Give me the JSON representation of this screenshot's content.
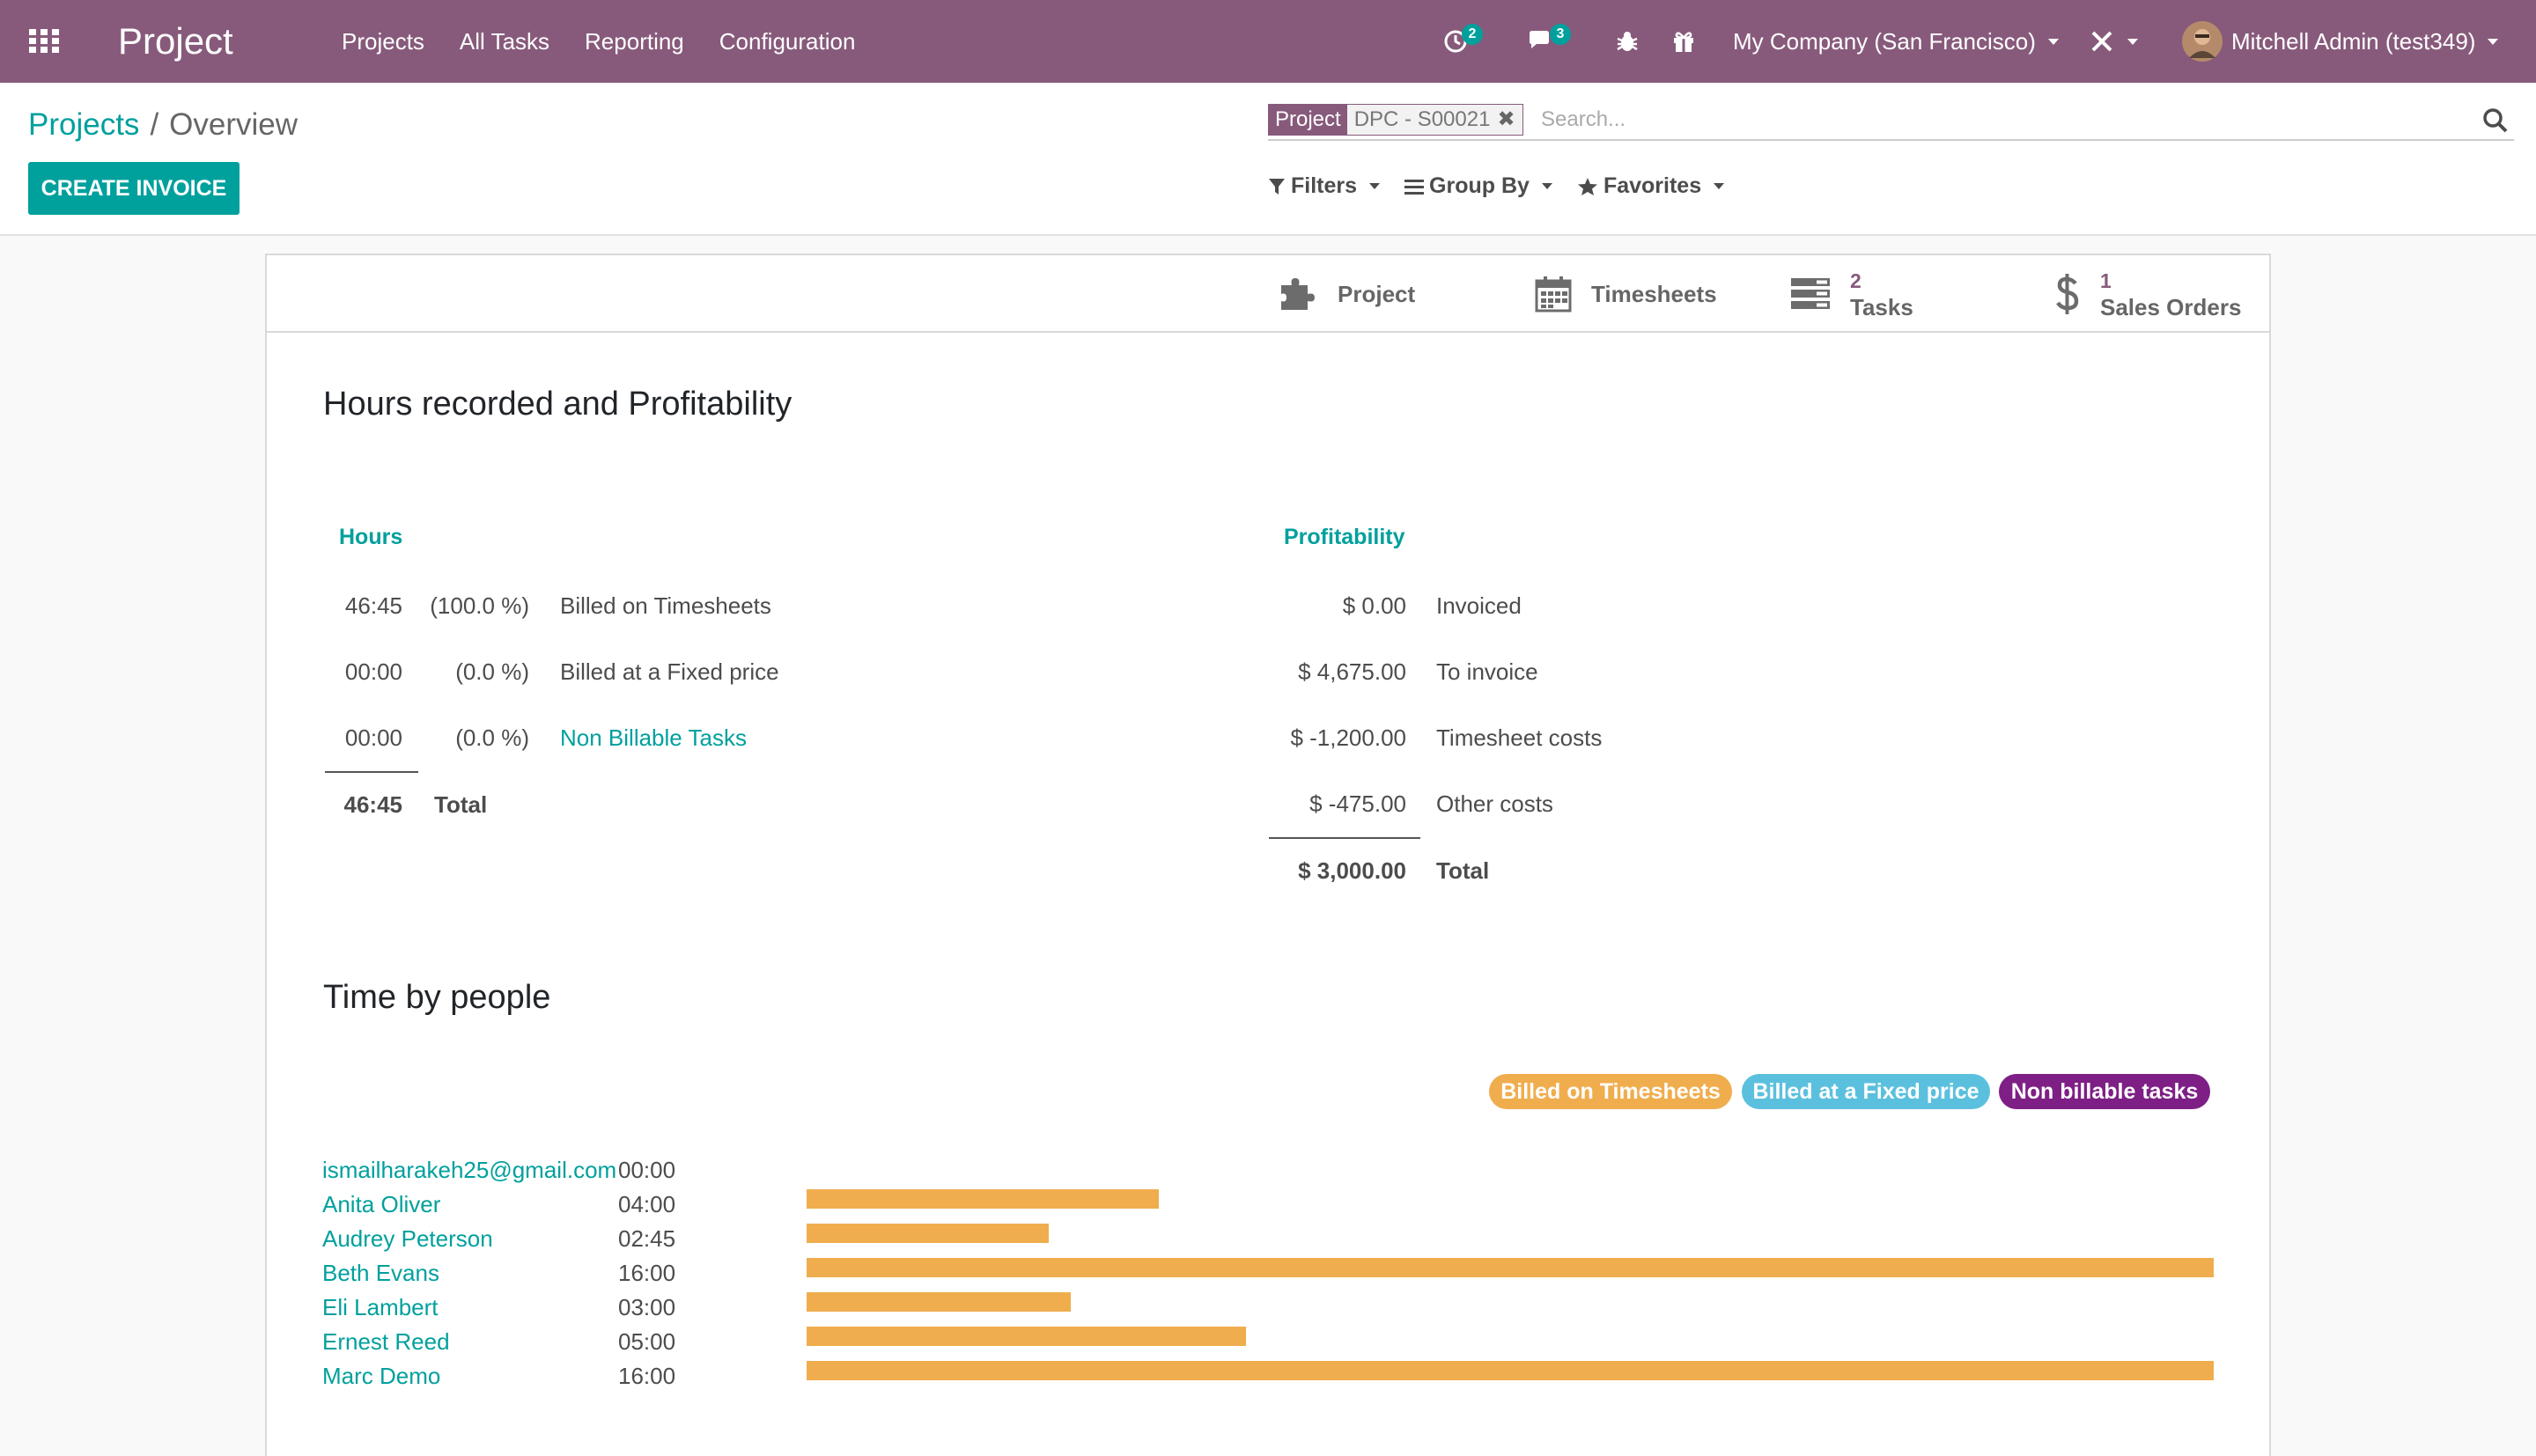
{
  "navbar": {
    "app_title": "Project",
    "menu": [
      "Projects",
      "All Tasks",
      "Reporting",
      "Configuration"
    ],
    "activity_count": "2",
    "messages_count": "3",
    "company": "My Company (San Francisco)",
    "user": "Mitchell Admin (test349)"
  },
  "breadcrumb": {
    "parent": "Projects",
    "separator": "/",
    "current": "Overview"
  },
  "actions": {
    "create_invoice": "CREATE INVOICE"
  },
  "search": {
    "facet_label": "Project",
    "facet_value": "DPC - S00021",
    "placeholder": "Search...",
    "filters": "Filters",
    "group_by": "Group By",
    "favorites": "Favorites"
  },
  "stat_buttons": {
    "project": {
      "label": "Project"
    },
    "timesheets": {
      "label": "Timesheets"
    },
    "tasks": {
      "value": "2",
      "label": "Tasks"
    },
    "sales_orders": {
      "value": "1",
      "label": "Sales Orders"
    }
  },
  "hours_section": {
    "title": "Hours recorded and Profitability",
    "hours_heading": "Hours",
    "rows": [
      {
        "time": "46:45",
        "pct": "(100.0 %)",
        "label": "Billed on Timesheets"
      },
      {
        "time": "00:00",
        "pct": "(0.0 %)",
        "label": "Billed at a Fixed price"
      },
      {
        "time": "00:00",
        "pct": "(0.0 %)",
        "label": "Non Billable Tasks"
      }
    ],
    "total_time": "46:45",
    "total_label": "Total"
  },
  "profitability": {
    "heading": "Profitability",
    "rows": [
      {
        "amount": "$ 0.00",
        "label": "Invoiced"
      },
      {
        "amount": "$ 4,675.00",
        "label": "To invoice"
      },
      {
        "amount": "$ -1,200.00",
        "label": "Timesheet costs"
      },
      {
        "amount": "$ -475.00",
        "label": "Other costs"
      }
    ],
    "total_amount": "$ 3,000.00",
    "total_label": "Total"
  },
  "time_by_people": {
    "title": "Time by people",
    "legend": [
      "Billed on Timesheets",
      "Billed at a Fixed price",
      "Non billable tasks"
    ],
    "people": [
      {
        "name": "ismailharakeh25@gmail.com",
        "hours": "00:00",
        "value": 0
      },
      {
        "name": "Anita Oliver",
        "hours": "04:00",
        "value": 4
      },
      {
        "name": "Audrey Peterson",
        "hours": "02:45",
        "value": 2.75
      },
      {
        "name": "Beth Evans",
        "hours": "16:00",
        "value": 16
      },
      {
        "name": "Eli Lambert",
        "hours": "03:00",
        "value": 3
      },
      {
        "name": "Ernest Reed",
        "hours": "05:00",
        "value": 5
      },
      {
        "name": "Marc Demo",
        "hours": "16:00",
        "value": 16
      }
    ],
    "max_value": 16
  },
  "colors": {
    "navbar": "#875a7b",
    "accent": "#00a09d",
    "billed_timesheets": "#f0ad4e",
    "billed_fixed": "#5bc0de",
    "non_billable": "#7e1f86"
  }
}
